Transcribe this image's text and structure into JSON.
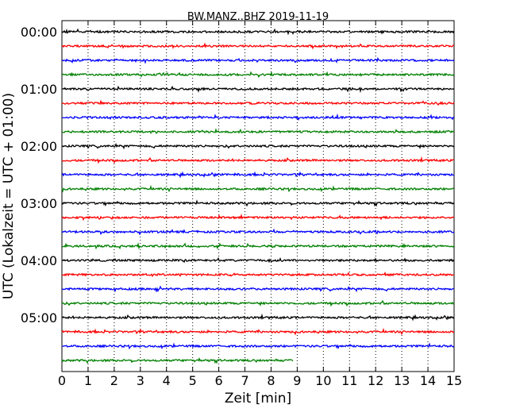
{
  "chart_data": {
    "type": "line",
    "title": "BW.MANZ..BHZ 2019-11-19",
    "xlabel": "Zeit  [min]",
    "ylabel": "UTC (Lokalzeit = UTC + 01:00)",
    "xlim": [
      0,
      15
    ],
    "x_ticks": [
      "0",
      "1",
      "2",
      "3",
      "4",
      "5",
      "6",
      "7",
      "8",
      "9",
      "10",
      "11",
      "12",
      "13",
      "14",
      "15"
    ],
    "y_tick_labels": [
      "00:00",
      "01:00",
      "02:00",
      "03:00",
      "04:00",
      "05:00"
    ],
    "trace_colors": [
      "#000000",
      "#ff0000",
      "#0000ff",
      "#008000"
    ],
    "grid": "vertical dotted",
    "trace_count": 24,
    "last_trace_end_min": 8.85
  }
}
